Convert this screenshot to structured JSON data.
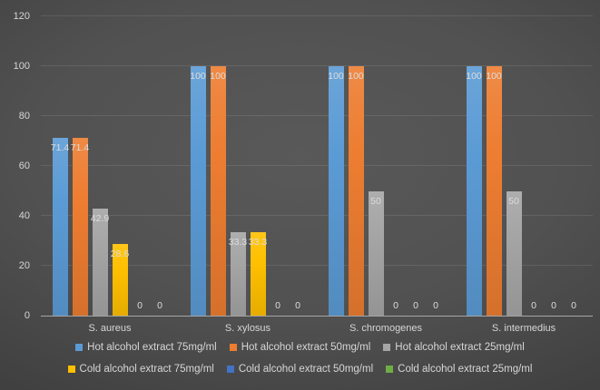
{
  "chart_data": {
    "type": "bar",
    "title": "",
    "xlabel": "",
    "ylabel": "",
    "categories": [
      "S. aureus",
      "S. xylosus",
      "S. chromogenes",
      "S. intermedius"
    ],
    "series": [
      {
        "name": "Hot alcohol extract 75mg/ml",
        "color": "#5B9BD5",
        "values": [
          71.4,
          100,
          100,
          100
        ]
      },
      {
        "name": "Hot alcohol extract 50mg/ml",
        "color": "#ED7D31",
        "values": [
          71.4,
          100,
          100,
          100
        ]
      },
      {
        "name": "Hot alcohol extract 25mg/ml",
        "color": "#A5A5A5",
        "values": [
          42.9,
          33.3,
          50,
          50
        ]
      },
      {
        "name": "Cold alcohol extract 75mg/ml",
        "color": "#FFC000",
        "values": [
          28.6,
          33.3,
          0,
          0
        ]
      },
      {
        "name": "Cold alcohol extract 50mg/ml",
        "color": "#4472C4",
        "values": [
          0,
          0,
          0,
          0
        ]
      },
      {
        "name": "Cold alcohol extract 25mg/ml",
        "color": "#70AD47",
        "values": [
          0,
          0,
          0,
          0
        ]
      }
    ],
    "data_labels": true,
    "y_axis": {
      "min": 0,
      "max": 120,
      "step": 20,
      "tick_labels": [
        "0",
        "20",
        "40",
        "60",
        "80",
        "100",
        "120"
      ]
    },
    "grid": true,
    "legend_position": "bottom",
    "legend_rows": [
      [
        0,
        1,
        2
      ],
      [
        3,
        4,
        5
      ]
    ],
    "colors": {
      "background_center": "#575757",
      "background_edge": "#272727",
      "gridline": "rgba(255,255,255,0.10)",
      "axis_line": "#a6a6a6",
      "text": "#d6d6d6",
      "data_label": "#dcdcdc"
    }
  }
}
